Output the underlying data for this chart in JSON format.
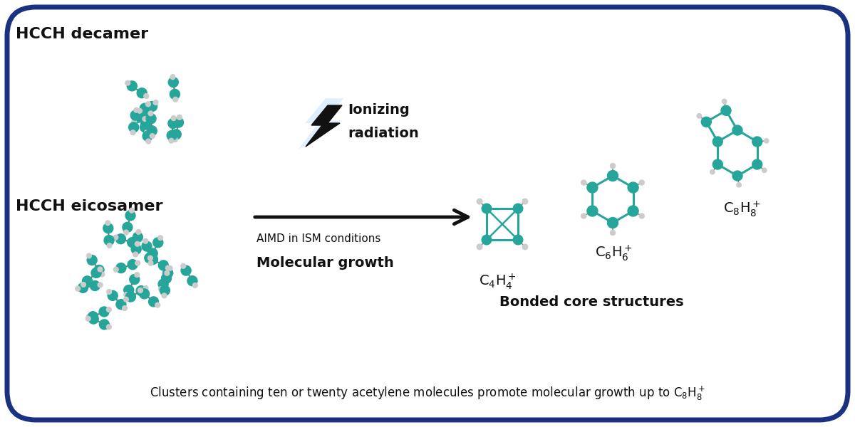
{
  "bg_color": "#ffffff",
  "border_color": "#1a3080",
  "teal_color": "#26a69a",
  "dark_color": "#111111",
  "title_decamer": "HCCH decamer",
  "title_eicosamer": "HCCH eicosamer",
  "label_ionizing_1": "Ionizing",
  "label_ionizing_2": "radiation",
  "label_aimd": "AIMD in ISM conditions",
  "label_molecular": "Molecular growth",
  "label_bonded": "Bonded core structures"
}
